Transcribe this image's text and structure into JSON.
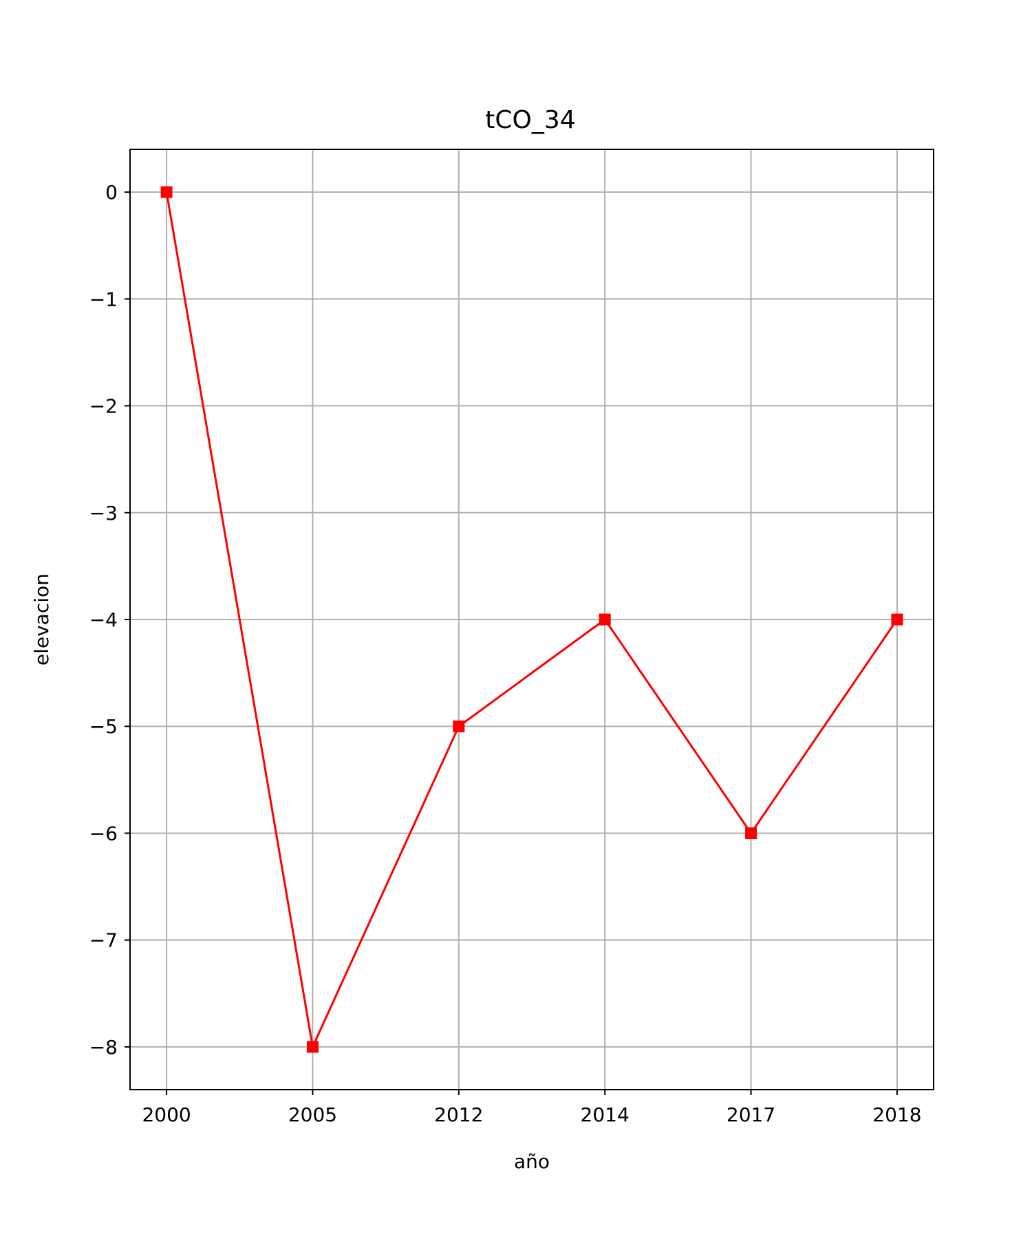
{
  "chart_data": {
    "type": "line",
    "title": "tCO_34",
    "xlabel": "año",
    "ylabel": "elevacion",
    "categories": [
      "2000",
      "2005",
      "2012",
      "2014",
      "2017",
      "2018"
    ],
    "series": [
      {
        "values": [
          0,
          -8,
          -5,
          -4,
          -6,
          -4
        ],
        "color": "#ff0000",
        "marker": "square"
      }
    ],
    "yticks": [
      0,
      -1,
      -2,
      -3,
      -4,
      -5,
      -6,
      -7,
      -8
    ],
    "ytick_labels": [
      "0",
      "−1",
      "−2",
      "−3",
      "−4",
      "−5",
      "−6",
      "−7",
      "−8"
    ],
    "ylim": [
      -8.4,
      0.4
    ],
    "grid": true
  }
}
